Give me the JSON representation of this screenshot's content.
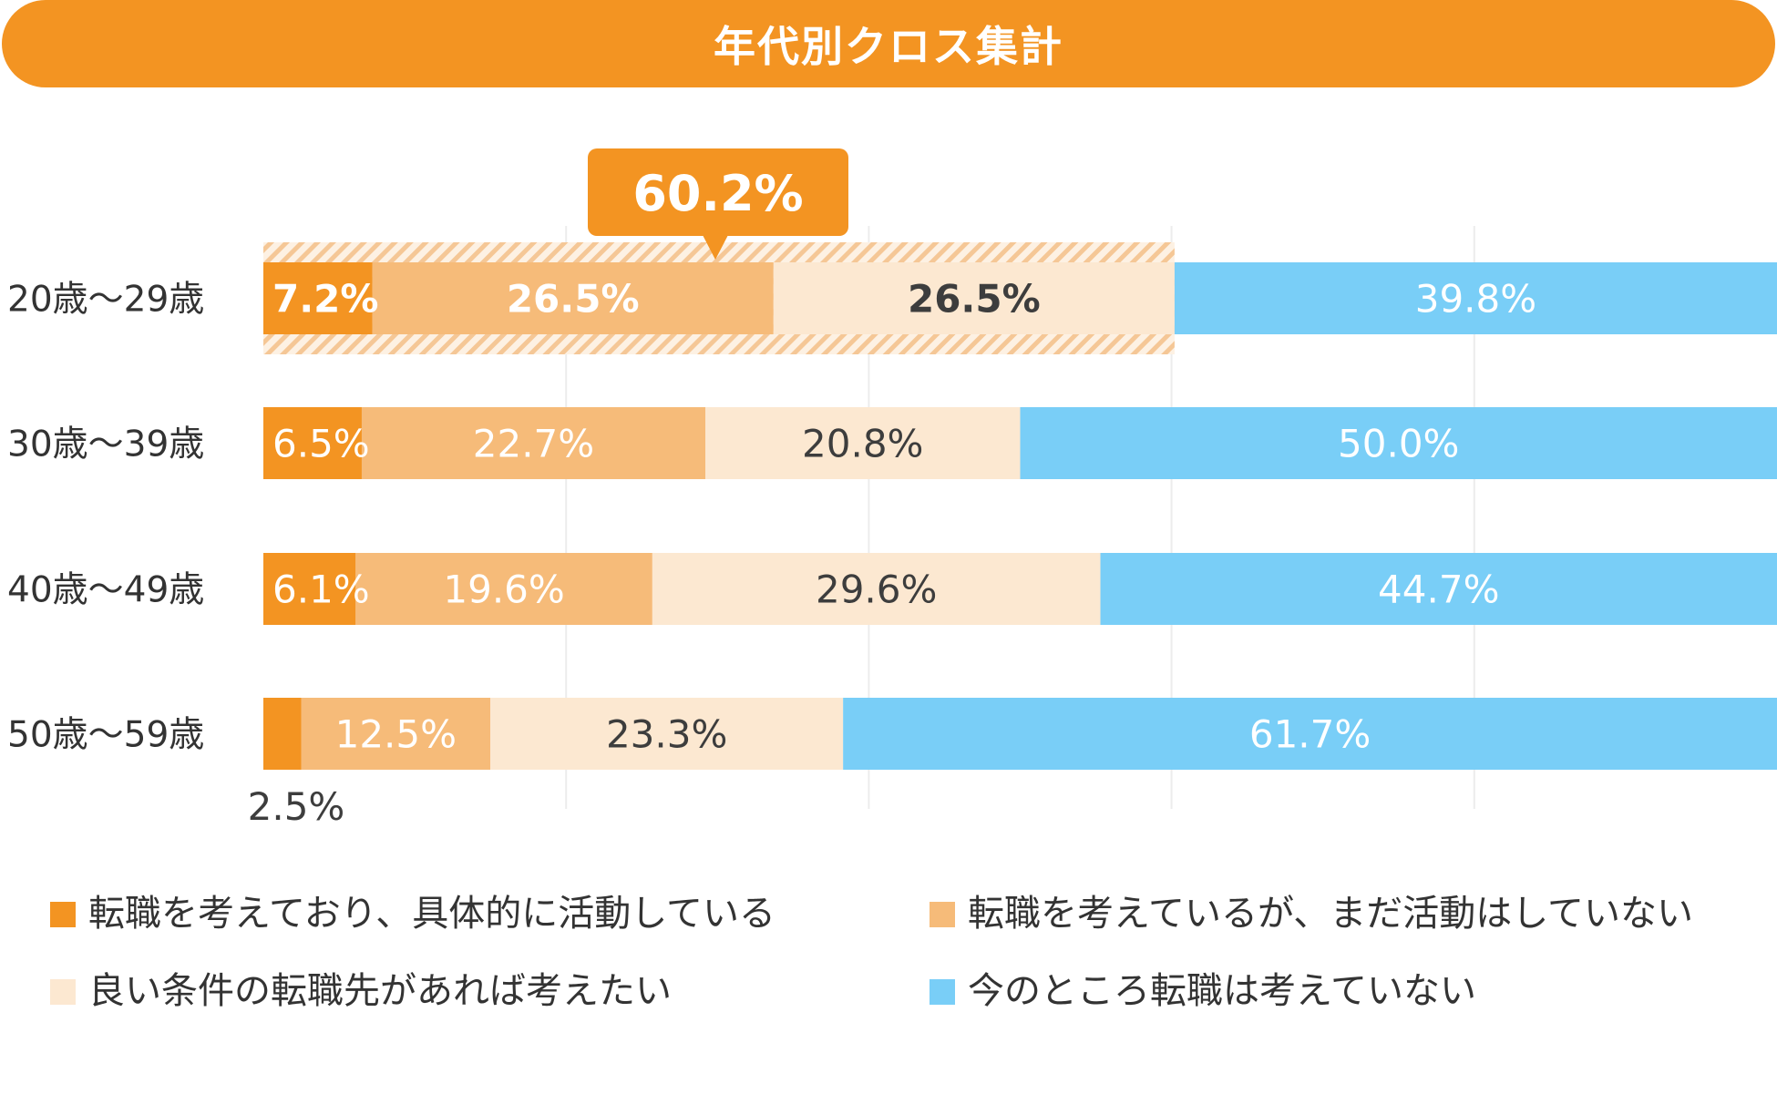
{
  "chart_data": {
    "type": "bar",
    "orientation": "horizontal",
    "stacked": true,
    "title": "年代別クロス集計",
    "categories": [
      "20歳～29歳",
      "30歳～39歳",
      "40歳～49歳",
      "50歳～59歳"
    ],
    "xlim": [
      0,
      100
    ],
    "series": [
      {
        "name": "転職を考えており、具体的に活動している",
        "color": "#F39422",
        "values": [
          7.2,
          6.5,
          6.1,
          2.5
        ],
        "labels": [
          "7.2%",
          "6.5%",
          "6.1%",
          "2.5%"
        ],
        "label_color": "#ffffff"
      },
      {
        "name": "転職を考えているが、まだ活動はしていない",
        "color": "#F6BB79",
        "values": [
          26.5,
          22.7,
          19.6,
          12.5
        ],
        "labels": [
          "26.5%",
          "22.7%",
          "19.6%",
          "12.5%"
        ],
        "label_color": "#ffffff"
      },
      {
        "name": "良い条件の転職先があれば考えたい",
        "color": "#FCE8D1",
        "values": [
          26.5,
          20.8,
          29.6,
          23.3
        ],
        "labels": [
          "26.5%",
          "20.8%",
          "29.6%",
          "23.3%"
        ],
        "label_color": "#3d3d3d"
      },
      {
        "name": "今のところ転職は考えていない",
        "color": "#79CEF7",
        "values": [
          39.8,
          50.0,
          44.7,
          61.7
        ],
        "labels": [
          "39.8%",
          "50.0%",
          "44.7%",
          "61.7%"
        ],
        "label_color": "#ffffff"
      }
    ],
    "highlight": {
      "label": "60.2%",
      "row": 0,
      "series_covered": 3,
      "color": "#F39422"
    },
    "legend_position": "bottom"
  }
}
